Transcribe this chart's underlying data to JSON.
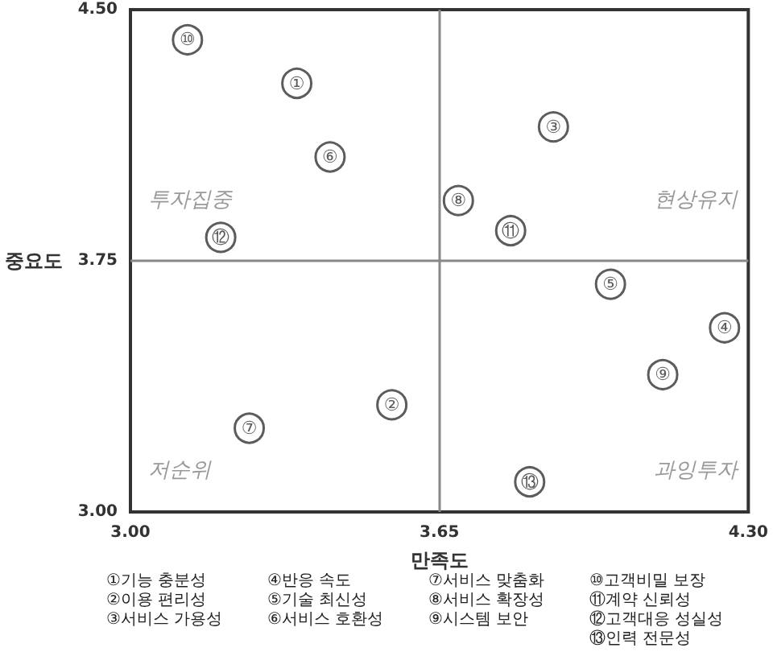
{
  "chart_data": {
    "type": "scatter",
    "xlabel": "만족도",
    "ylabel": "중요도",
    "x": [
      3.35,
      3.55,
      3.89,
      4.25,
      4.01,
      3.42,
      3.25,
      3.69,
      4.12,
      3.12,
      3.8,
      3.19,
      3.84
    ],
    "values": [
      4.28,
      3.32,
      4.15,
      3.55,
      3.68,
      4.06,
      3.25,
      3.93,
      3.41,
      4.41,
      3.84,
      3.82,
      3.09
    ],
    "value_labels": [
      "①",
      "②",
      "③",
      "④",
      "⑤",
      "⑥",
      "⑦",
      "⑧",
      "⑨",
      "⑩",
      "⑪",
      "⑫",
      "⑬"
    ],
    "color": "#333333",
    "marker": "circle",
    "xlim": [
      3.0,
      4.3
    ],
    "xticks": [
      {
        "value": 3.0,
        "label": "3.00"
      },
      {
        "value": 3.65,
        "label": "3.65"
      },
      {
        "value": 4.3,
        "label": "4.30"
      }
    ],
    "ylim": [
      3.0,
      4.5
    ],
    "yticks": [
      {
        "value": 3.0,
        "label": "3.00"
      },
      {
        "value": 3.75,
        "label": "3.75"
      },
      {
        "value": 4.5,
        "label": "4.50"
      }
    ],
    "ref_lines": [
      {
        "axis": "x",
        "value": 3.65,
        "color": "#888888"
      },
      {
        "axis": "y",
        "value": 3.75,
        "color": "#888888"
      }
    ],
    "grid": false,
    "annotations": [
      "투자집중",
      "현상유지",
      "저순위",
      "과잉투자",
      "①기능 충분성",
      "②이용 편리성",
      "③서비스 가용성",
      "④반응 속도",
      "⑤기술 최신성",
      "⑥서비스 호환성",
      "⑦서비스 맞춤화",
      "⑧서비스 확장성",
      "⑨시스템 보안",
      "⑩고객비밀 보장",
      "⑪계약 신뢰성",
      "⑫고객대응 성실성",
      "⑬인력 전문성"
    ]
  }
}
